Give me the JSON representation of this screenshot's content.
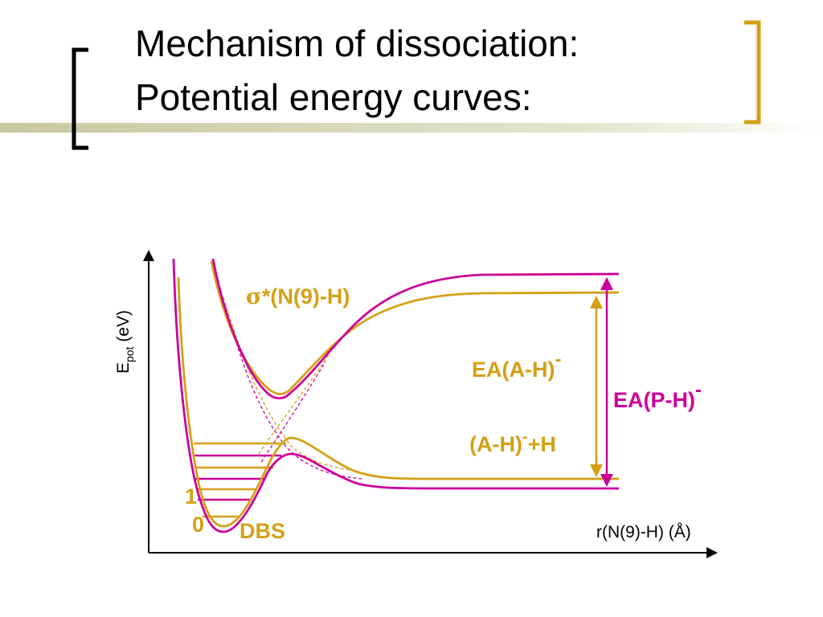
{
  "title": {
    "line1": "Mechanism of dissociation:",
    "line2": "Potential energy curves:"
  },
  "colors": {
    "gold": "#D4A017",
    "magenta": "#CC0099",
    "axis": "#000000",
    "accent_band": "#C8C8A0"
  },
  "diagram": {
    "sigma_label": "*(N(9)-H)",
    "sigma_symbol": "σ",
    "ea_ah_label": "EA(A-H)",
    "ea_ah_sup": "-",
    "ea_ph_label": "EA(P-H)",
    "ea_ph_sup": "-",
    "product_label_a": "(A-H)",
    "product_label_sup": "-",
    "product_label_b": "+H",
    "dbs_label": "DBS",
    "level_1": "1",
    "level_0": "0",
    "y_axis_label_main": "E",
    "y_axis_label_sub": "pot",
    "y_axis_label_unit": " (eV)",
    "x_axis_label": "r(N(9)-H) (Å)"
  }
}
